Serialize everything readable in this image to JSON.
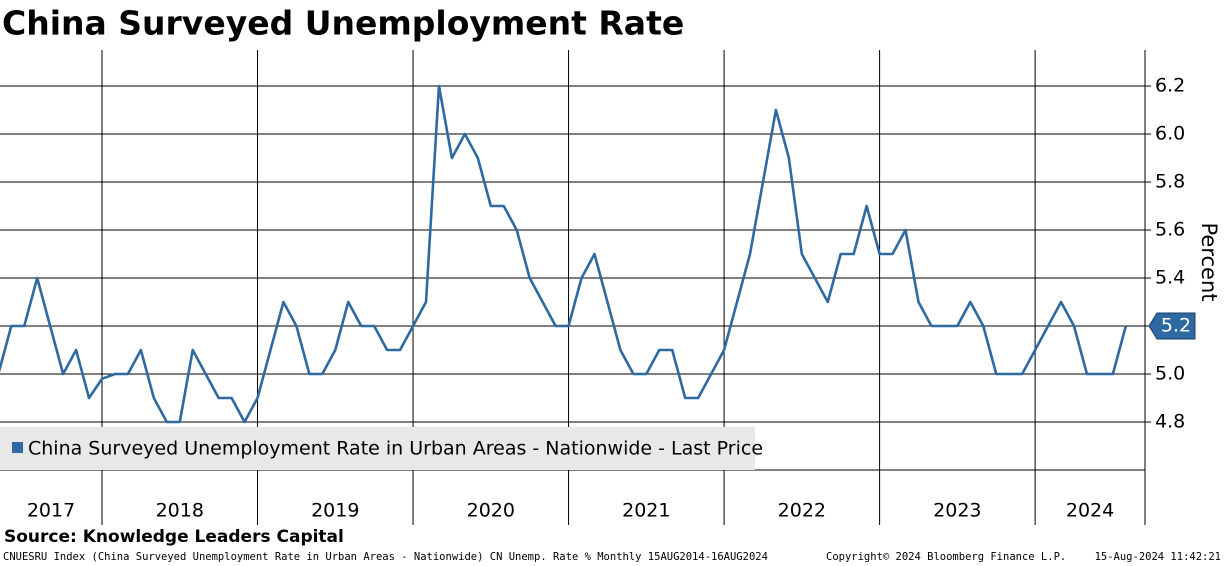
{
  "chart_data": {
    "type": "line",
    "title": "China Surveyed Unemployment Rate",
    "y_axis_label": "Percent",
    "source": "Source: Knowledge Leaders Capital",
    "footer_left": "CNUESRU Index (China Surveyed Unemployment Rate in Urban Areas - Nationwide) CN Unemp. Rate %  Monthly 15AUG2014-16AUG2024",
    "copyright": "Copyright© 2024 Bloomberg Finance L.P.",
    "timestamp": "15-Aug-2024 11:42:21",
    "x_labels": [
      "2017",
      "2018",
      "2019",
      "2020",
      "2021",
      "2022",
      "2023",
      "2024"
    ],
    "series": [
      {
        "name": "China Surveyed Unemployment Rate in Urban Areas - Nationwide - Last Price",
        "color": "#2e6aa1",
        "values": [
          5.0,
          5.2,
          5.2,
          5.4,
          5.2,
          5.0,
          5.1,
          4.9,
          4.98,
          5.0,
          5.0,
          5.1,
          4.9,
          4.8,
          4.8,
          5.1,
          5.0,
          4.9,
          4.9,
          4.8,
          4.9,
          5.1,
          5.3,
          5.2,
          5.0,
          5.0,
          5.1,
          5.3,
          5.2,
          5.2,
          5.1,
          5.1,
          5.2,
          5.3,
          6.2,
          5.9,
          6.0,
          5.9,
          5.7,
          5.7,
          5.6,
          5.4,
          5.3,
          5.2,
          5.2,
          5.4,
          5.5,
          5.3,
          5.1,
          5.0,
          5.0,
          5.1,
          5.1,
          4.9,
          4.9,
          5.0,
          5.1,
          5.3,
          5.5,
          5.8,
          6.1,
          5.9,
          5.5,
          5.4,
          5.3,
          5.5,
          5.5,
          5.7,
          5.5,
          5.5,
          5.6,
          5.3,
          5.2,
          5.2,
          5.2,
          5.3,
          5.2,
          5.0,
          5.0,
          5.0,
          5.1,
          5.2,
          5.3,
          5.2,
          5.0,
          5.0,
          5.0,
          5.2
        ]
      }
    ],
    "last_value_label": "5.2",
    "ylim": [
      4.6,
      6.35
    ],
    "yticks": [
      4.8,
      {
        "value": 5.0,
        "label": "5.0"
      },
      5.2,
      5.4,
      5.6,
      5.8,
      {
        "value": 6.0,
        "label": "6.0"
      },
      6.2
    ],
    "grid": true
  }
}
